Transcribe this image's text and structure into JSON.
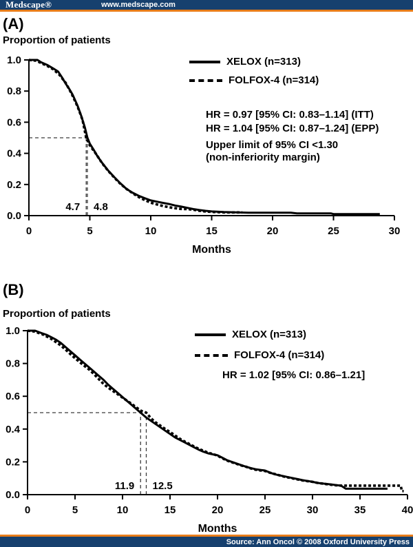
{
  "header": {
    "logo": "Medscape®",
    "url": "www.medscape.com"
  },
  "footer": {
    "source": "Source: Ann Oncol © 2008 Oxford University Press"
  },
  "colors": {
    "navy": "#16406e",
    "orange": "#e87d1a",
    "ink": "#000000",
    "background": "#ffffff",
    "guide": "#3a3a3a"
  },
  "chart_data": [
    {
      "type": "line",
      "panel_label": "(A)",
      "ylabel": "Proportion of patients",
      "xlabel": "Months",
      "xlim": [
        0,
        30
      ],
      "xticks": [
        0,
        5,
        10,
        15,
        20,
        25,
        30
      ],
      "ylim": [
        0,
        1
      ],
      "yticks": [
        0,
        0.2,
        0.4,
        0.6,
        0.8,
        1.0
      ],
      "ytick_labels": [
        "0.0",
        "0.2",
        "0.4",
        "0.6",
        "0.8",
        "1.0"
      ],
      "grid": false,
      "legend_position": "upper right",
      "legend": [
        {
          "label": "XELOX (n=313)",
          "style": "solid"
        },
        {
          "label": "FOLFOX-4 (n=314)",
          "style": "dashed"
        }
      ],
      "annotations": [
        "HR = 0.97 [95% CI: 0.83–1.14] (ITT)",
        "HR = 1.04 [95% CI: 0.87–1.24] (EPP)",
        "Upper limit of 95% CI <1.30",
        "(non-inferiority margin)"
      ],
      "median_guide": {
        "y": 0.5,
        "labels": [
          {
            "text": "4.7",
            "x": 4.7
          },
          {
            "text": "4.8",
            "x": 4.8
          }
        ]
      },
      "series": [
        {
          "name": "XELOX (n=313)",
          "style": "solid",
          "points": [
            [
              0,
              1.0
            ],
            [
              0.7,
              1.0
            ],
            [
              1,
              0.985
            ],
            [
              1.5,
              0.968
            ],
            [
              2,
              0.945
            ],
            [
              2.4,
              0.925
            ],
            [
              2.7,
              0.89
            ],
            [
              3,
              0.85
            ],
            [
              3.3,
              0.815
            ],
            [
              3.6,
              0.775
            ],
            [
              4,
              0.705
            ],
            [
              4.3,
              0.64
            ],
            [
              4.6,
              0.565
            ],
            [
              4.8,
              0.5
            ],
            [
              5,
              0.462
            ],
            [
              5.3,
              0.425
            ],
            [
              5.6,
              0.385
            ],
            [
              6,
              0.34
            ],
            [
              6.5,
              0.29
            ],
            [
              7,
              0.248
            ],
            [
              7.5,
              0.208
            ],
            [
              8,
              0.172
            ],
            [
              8.5,
              0.148
            ],
            [
              9,
              0.128
            ],
            [
              9.5,
              0.112
            ],
            [
              10,
              0.098
            ],
            [
              10.5,
              0.09
            ],
            [
              11,
              0.082
            ],
            [
              11.5,
              0.075
            ],
            [
              12,
              0.065
            ],
            [
              12.5,
              0.058
            ],
            [
              13,
              0.05
            ],
            [
              13.5,
              0.042
            ],
            [
              14,
              0.036
            ],
            [
              14.5,
              0.031
            ],
            [
              15,
              0.027
            ],
            [
              16,
              0.023
            ],
            [
              17,
              0.021
            ],
            [
              18,
              0.019
            ],
            [
              21.5,
              0.019
            ],
            [
              22,
              0.014
            ],
            [
              24.8,
              0.014
            ],
            [
              25,
              0.01
            ],
            [
              28.8,
              0.01
            ]
          ]
        },
        {
          "name": "FOLFOX-4 (n=314)",
          "style": "dashed",
          "points": [
            [
              0,
              1.0
            ],
            [
              0.6,
              0.995
            ],
            [
              1,
              0.98
            ],
            [
              1.5,
              0.962
            ],
            [
              2,
              0.94
            ],
            [
              2.5,
              0.905
            ],
            [
              3,
              0.855
            ],
            [
              3.5,
              0.785
            ],
            [
              4,
              0.7
            ],
            [
              4.4,
              0.615
            ],
            [
              4.7,
              0.5
            ],
            [
              5,
              0.452
            ],
            [
              5.5,
              0.398
            ],
            [
              6,
              0.338
            ],
            [
              6.5,
              0.288
            ],
            [
              7,
              0.245
            ],
            [
              7.5,
              0.205
            ],
            [
              8,
              0.172
            ],
            [
              8.5,
              0.145
            ],
            [
              9,
              0.12
            ],
            [
              9.5,
              0.1
            ],
            [
              10,
              0.083
            ],
            [
              10.5,
              0.072
            ],
            [
              11,
              0.062
            ],
            [
              11.5,
              0.054
            ],
            [
              12,
              0.048
            ],
            [
              12.5,
              0.043
            ],
            [
              13,
              0.042
            ],
            [
              13.5,
              0.038
            ],
            [
              14,
              0.031
            ],
            [
              14.5,
              0.027
            ],
            [
              15,
              0.024
            ],
            [
              15.5,
              0.022
            ],
            [
              16,
              0.021
            ],
            [
              17.5,
              0.021
            ]
          ]
        }
      ]
    },
    {
      "type": "line",
      "panel_label": "(B)",
      "ylabel": "Proportion of patients",
      "xlabel": "Months",
      "xlim": [
        0,
        40
      ],
      "xticks": [
        0,
        5,
        10,
        15,
        20,
        25,
        30,
        35,
        40
      ],
      "ylim": [
        0,
        1
      ],
      "yticks": [
        0,
        0.2,
        0.4,
        0.6,
        0.8,
        1.0
      ],
      "ytick_labels": [
        "0.0",
        "0.2",
        "0.4",
        "0.6",
        "0.8",
        "1.0"
      ],
      "grid": false,
      "legend_position": "upper right",
      "legend": [
        {
          "label": "XELOX (n=313)",
          "style": "solid"
        },
        {
          "label": "FOLFOX-4 (n=314)",
          "style": "dashed"
        }
      ],
      "annotations": [
        "HR = 1.02 [95% CI: 0.86–1.21]"
      ],
      "median_guide": {
        "y": 0.5,
        "labels": [
          {
            "text": "11.9",
            "x": 11.9
          },
          {
            "text": "12.5",
            "x": 12.5
          }
        ]
      },
      "series": [
        {
          "name": "XELOX (n=313)",
          "style": "solid",
          "points": [
            [
              0,
              1.0
            ],
            [
              0.8,
              1.0
            ],
            [
              1.5,
              0.985
            ],
            [
              2,
              0.975
            ],
            [
              2.5,
              0.96
            ],
            [
              3,
              0.945
            ],
            [
              3.5,
              0.925
            ],
            [
              4,
              0.9
            ],
            [
              4.5,
              0.875
            ],
            [
              5,
              0.85
            ],
            [
              5.5,
              0.825
            ],
            [
              6,
              0.8
            ],
            [
              6.5,
              0.775
            ],
            [
              7,
              0.75
            ],
            [
              7.5,
              0.725
            ],
            [
              8,
              0.7
            ],
            [
              8.5,
              0.67
            ],
            [
              9,
              0.645
            ],
            [
              9.5,
              0.62
            ],
            [
              10,
              0.595
            ],
            [
              10.5,
              0.57
            ],
            [
              11,
              0.545
            ],
            [
              11.5,
              0.52
            ],
            [
              11.9,
              0.5
            ],
            [
              12.5,
              0.47
            ],
            [
              13,
              0.45
            ],
            [
              13.5,
              0.43
            ],
            [
              14,
              0.41
            ],
            [
              14.5,
              0.39
            ],
            [
              15,
              0.37
            ],
            [
              15.5,
              0.35
            ],
            [
              16,
              0.335
            ],
            [
              16.5,
              0.32
            ],
            [
              17,
              0.305
            ],
            [
              17.5,
              0.29
            ],
            [
              18,
              0.275
            ],
            [
              18.5,
              0.262
            ],
            [
              19,
              0.252
            ],
            [
              19.5,
              0.246
            ],
            [
              20,
              0.24
            ],
            [
              20.5,
              0.225
            ],
            [
              21,
              0.21
            ],
            [
              21.5,
              0.2
            ],
            [
              22,
              0.19
            ],
            [
              22.5,
              0.18
            ],
            [
              23,
              0.17
            ],
            [
              23.5,
              0.162
            ],
            [
              24,
              0.155
            ],
            [
              25,
              0.147
            ],
            [
              25.5,
              0.135
            ],
            [
              26,
              0.125
            ],
            [
              26.5,
              0.118
            ],
            [
              27,
              0.112
            ],
            [
              27.5,
              0.106
            ],
            [
              28,
              0.1
            ],
            [
              28.5,
              0.094
            ],
            [
              29,
              0.088
            ],
            [
              29.5,
              0.083
            ],
            [
              30,
              0.078
            ],
            [
              30.5,
              0.072
            ],
            [
              31,
              0.068
            ],
            [
              31.5,
              0.065
            ],
            [
              32,
              0.062
            ],
            [
              32.5,
              0.058
            ],
            [
              33,
              0.055
            ],
            [
              33.5,
              0.036
            ],
            [
              37.9,
              0.036
            ]
          ]
        },
        {
          "name": "FOLFOX-4 (n=314)",
          "style": "dashed",
          "points": [
            [
              0,
              1.0
            ],
            [
              0.7,
              0.995
            ],
            [
              1.5,
              0.98
            ],
            [
              2,
              0.965
            ],
            [
              2.5,
              0.95
            ],
            [
              3,
              0.93
            ],
            [
              3.5,
              0.91
            ],
            [
              4,
              0.885
            ],
            [
              4.5,
              0.858
            ],
            [
              5,
              0.832
            ],
            [
              5.5,
              0.808
            ],
            [
              6,
              0.785
            ],
            [
              6.5,
              0.762
            ],
            [
              7,
              0.735
            ],
            [
              7.5,
              0.705
            ],
            [
              8,
              0.675
            ],
            [
              8.5,
              0.652
            ],
            [
              9,
              0.632
            ],
            [
              9.5,
              0.612
            ],
            [
              10,
              0.592
            ],
            [
              10.5,
              0.572
            ],
            [
              11,
              0.552
            ],
            [
              11.5,
              0.53
            ],
            [
              12,
              0.51
            ],
            [
              12.5,
              0.5
            ],
            [
              13,
              0.465
            ],
            [
              13.5,
              0.44
            ],
            [
              14,
              0.42
            ],
            [
              14.5,
              0.4
            ],
            [
              15,
              0.382
            ],
            [
              15.5,
              0.362
            ],
            [
              16,
              0.342
            ],
            [
              16.5,
              0.325
            ],
            [
              17,
              0.31
            ],
            [
              17.5,
              0.295
            ],
            [
              18,
              0.28
            ],
            [
              18.5,
              0.268
            ],
            [
              19,
              0.256
            ],
            [
              19.5,
              0.248
            ],
            [
              20,
              0.238
            ],
            [
              20.5,
              0.222
            ],
            [
              21,
              0.208
            ],
            [
              21.5,
              0.198
            ],
            [
              22,
              0.188
            ],
            [
              22.5,
              0.178
            ],
            [
              23,
              0.17
            ],
            [
              23.5,
              0.16
            ],
            [
              24,
              0.152
            ],
            [
              24.5,
              0.148
            ],
            [
              25,
              0.144
            ],
            [
              25.5,
              0.134
            ],
            [
              26,
              0.126
            ],
            [
              26.5,
              0.118
            ],
            [
              27,
              0.11
            ],
            [
              27.5,
              0.104
            ],
            [
              28,
              0.098
            ],
            [
              28.5,
              0.092
            ],
            [
              29,
              0.086
            ],
            [
              29.5,
              0.082
            ],
            [
              30,
              0.078
            ],
            [
              30.5,
              0.072
            ],
            [
              31,
              0.068
            ],
            [
              31.5,
              0.064
            ],
            [
              32,
              0.06
            ],
            [
              32.5,
              0.057
            ],
            [
              33,
              0.055
            ],
            [
              39.3,
              0.055
            ],
            [
              39.4,
              0.022
            ],
            [
              39.6,
              0.022
            ]
          ]
        }
      ]
    }
  ]
}
